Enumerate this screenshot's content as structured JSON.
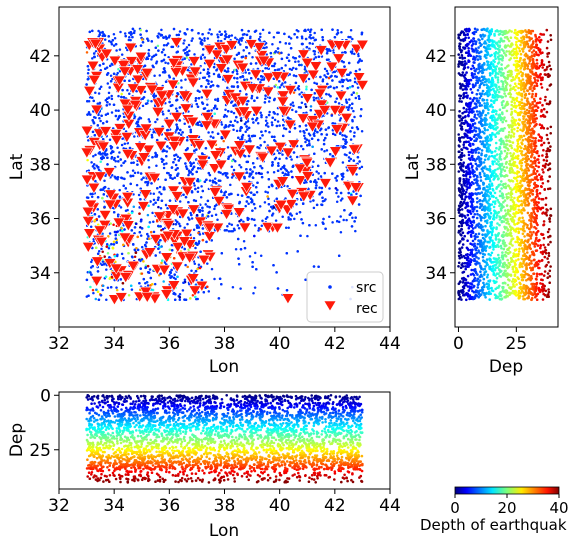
{
  "chart_data": [
    {
      "id": "map",
      "type": "scatter",
      "xlabel": "Lon",
      "ylabel": "Lat",
      "xlim": [
        32,
        44
      ],
      "ylim": [
        32.0,
        43.8
      ],
      "xticks": [
        32,
        34,
        36,
        38,
        40,
        42,
        44
      ],
      "yticks": [
        34,
        36,
        38,
        40,
        42
      ],
      "legend": {
        "placement": "lower-right",
        "entries": [
          "src",
          "rec"
        ]
      },
      "series": [
        {
          "name": "src",
          "marker": "dot",
          "color": "#0033ff",
          "x_range": [
            33.0,
            43.0
          ],
          "y_range": [
            33.0,
            43.0
          ]
        },
        {
          "name": "rec",
          "marker": "triangle-down",
          "color": "#ff1a0a",
          "x_range": [
            33.0,
            43.0
          ],
          "y_range": [
            33.0,
            42.5
          ],
          "points": [
            [
              40.3,
              33.05
            ],
            [
              43.0,
              42.4
            ],
            [
              35.2,
              33.1
            ],
            [
              35.9,
              33.2
            ]
          ]
        }
      ]
    },
    {
      "id": "lat-depth",
      "type": "scatter",
      "xlabel": "Dep",
      "ylabel": "Lat",
      "xlim": [
        -1.5,
        43
      ],
      "ylim": [
        32.0,
        43.8
      ],
      "xticks": [
        0,
        25
      ],
      "yticks": [
        34,
        36,
        38,
        40,
        42
      ],
      "x_range": [
        0,
        40
      ],
      "y_range": [
        33.0,
        43.0
      ],
      "color_by": "depth"
    },
    {
      "id": "depth-lon",
      "type": "scatter",
      "xlabel": "Lon",
      "ylabel": "Dep",
      "xlim": [
        32,
        44
      ],
      "ylim": [
        43,
        -1.5
      ],
      "xticks": [
        32,
        34,
        36,
        38,
        40,
        42,
        44
      ],
      "yticks": [
        0,
        25
      ],
      "x_range": [
        33.0,
        43.0
      ],
      "y_range": [
        0,
        40
      ],
      "color_by": "depth"
    }
  ],
  "colorbar": {
    "label": "Depth of earthquak",
    "range": [
      0,
      40
    ],
    "ticks": [
      0,
      20,
      40
    ],
    "colormap": "jet"
  }
}
